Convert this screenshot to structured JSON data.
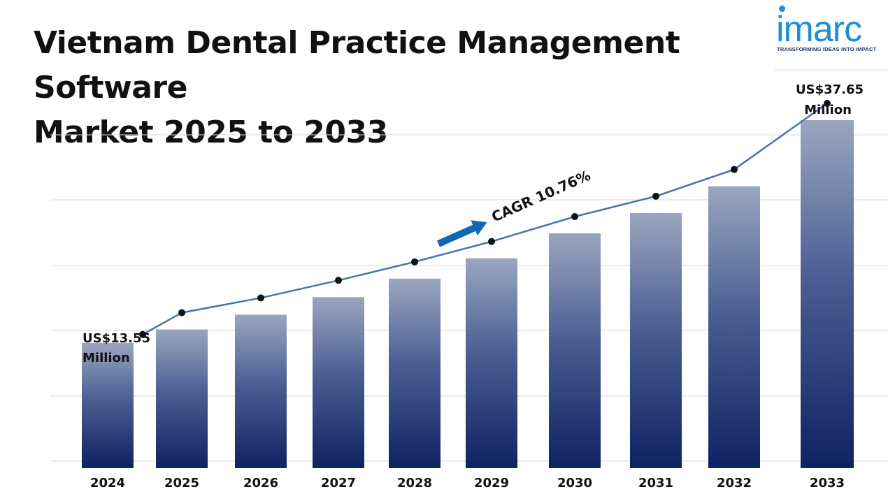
{
  "title": {
    "line1": "Vietnam Dental Practice Management Software",
    "line2": "Market 2025 to 2033"
  },
  "logo": {
    "word": "imarc",
    "tagline": "TRANSFORMING IDEAS INTO IMPACT"
  },
  "colors": {
    "bar_top": "#9aa5bf",
    "bar_bottom": "#0f2262",
    "line": "#4a72b0",
    "marker": "#111111",
    "arrow": "#1068b5",
    "grid": "#d9d9d9"
  },
  "chart_data": {
    "type": "bar",
    "categories": [
      "2024",
      "2025",
      "2026",
      "2027",
      "2028",
      "2029",
      "2030",
      "2031",
      "2032",
      "2033"
    ],
    "values": [
      13.55,
      15.0,
      16.6,
      18.5,
      20.5,
      22.7,
      25.4,
      27.6,
      30.5,
      37.65
    ],
    "annotations": {
      "start": {
        "value": "US$13.55",
        "unit": "Million"
      },
      "end": {
        "value": "US$37.65",
        "unit": "Million"
      },
      "cagr": "CAGR 10.76%"
    },
    "grid": true,
    "legend": "none"
  }
}
